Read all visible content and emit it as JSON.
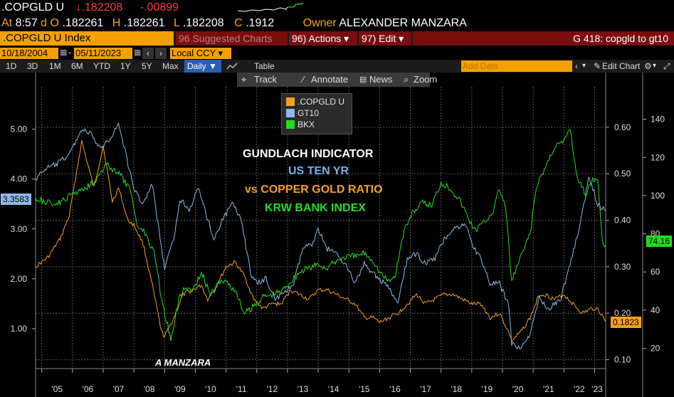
{
  "quote": {
    "ticker": ".COPGLD U",
    "last_arrow": "↓",
    "last": ".182208",
    "change": "-.00899",
    "at_label": "At",
    "time": "8:57",
    "d_label": "d",
    "o_label": "O",
    "open": ".182261",
    "h_label": "H",
    "high": ".182261",
    "l_label": "L",
    "low": ".182208",
    "c_label": "C",
    "close": ".1912",
    "owner_label": "Owner",
    "owner": "ALEXANDER MANZARA"
  },
  "cmdbar": {
    "security": ".COPGLD U Index",
    "suggested": "Suggested Charts",
    "suggested_num": "96",
    "actions": "Actions",
    "actions_num": "96)",
    "edit": "Edit",
    "edit_num": "97)",
    "function": "G 418: copgld to gt10"
  },
  "datebar": {
    "start": "10/18/2004",
    "end": "05/11/2023",
    "currency": "Local CCY"
  },
  "rangebar": {
    "ranges": [
      "1D",
      "3D",
      "1M",
      "6M",
      "YTD",
      "1Y",
      "5Y",
      "Max"
    ],
    "frequency": "Daily",
    "table": "Table",
    "add_data": "Add Data",
    "edit_chart": "Edit Chart"
  },
  "toolbar": {
    "track": "Track",
    "annotate": "Annotate",
    "news": "News",
    "zoom": "Zoom"
  },
  "annotations": {
    "title": "GUNDLACH INDICATOR",
    "line1": "US TEN YR",
    "line2": "vs COPPER GOLD RATIO",
    "line3": "KRW BANK INDEX",
    "author": "A MANZARA"
  },
  "colors": {
    "copgld": "#f5a020",
    "gt10": "#8fb8e8",
    "bkx": "#22dd22",
    "background": "#000000",
    "grid": "#5a5a5a"
  },
  "chart_data": {
    "type": "line",
    "x_ticks": [
      "'05",
      "'06",
      "'07",
      "'08",
      "'09",
      "'10",
      "'11",
      "'12",
      "'13",
      "'14",
      "'15",
      "'16",
      "'17",
      "'18",
      "'19",
      "'20",
      "'21",
      "'22",
      "'23"
    ],
    "xlim": [
      2004.8,
      2023.36
    ],
    "left_axis": {
      "ticks": [
        "1.00",
        "2.00",
        "3.00",
        "4.00",
        "5.00"
      ],
      "ylim": [
        0.2,
        5.85
      ],
      "series": "GT10",
      "last_label": "3.3583"
    },
    "right_axis_ratio": {
      "ticks": [
        "0.10",
        "0.20",
        "0.30",
        "0.40",
        "0.50",
        "0.60"
      ],
      "ylim": [
        0.081,
        0.687
      ],
      "series": ".COPGLD U",
      "last_label": "0.1823"
    },
    "right_axis_index": {
      "ticks": [
        "20",
        "40",
        "60",
        "80",
        "100",
        "120",
        "140"
      ],
      "ylim": [
        9.4,
        157
      ],
      "series": "BKX",
      "last_label": "74.16"
    },
    "series": [
      {
        "name": ".COPGLD U",
        "axis": "right_axis_ratio",
        "x": [
          2004.8,
          2005.2,
          2005.6,
          2005.9,
          2006.1,
          2006.3,
          2006.5,
          2006.7,
          2007.0,
          2007.3,
          2007.5,
          2007.8,
          2008.0,
          2008.3,
          2008.6,
          2008.9,
          2009.0,
          2009.3,
          2009.6,
          2009.9,
          2010.2,
          2010.4,
          2010.7,
          2011.0,
          2011.3,
          2011.6,
          2011.9,
          2012.2,
          2012.5,
          2012.8,
          2013.1,
          2013.4,
          2013.7,
          2014.0,
          2014.3,
          2014.6,
          2014.9,
          2015.2,
          2015.5,
          2015.8,
          2016.0,
          2016.3,
          2016.6,
          2016.9,
          2017.2,
          2017.5,
          2017.8,
          2018.1,
          2018.4,
          2018.7,
          2019.0,
          2019.3,
          2019.6,
          2019.9,
          2020.2,
          2020.3,
          2020.6,
          2020.9,
          2021.2,
          2021.4,
          2021.7,
          2022.0,
          2022.3,
          2022.6,
          2022.9,
          2023.1,
          2023.36
        ],
        "values": [
          0.3,
          0.32,
          0.36,
          0.41,
          0.49,
          0.57,
          0.52,
          0.47,
          0.56,
          0.44,
          0.47,
          0.4,
          0.39,
          0.35,
          0.26,
          0.16,
          0.15,
          0.19,
          0.24,
          0.25,
          0.26,
          0.23,
          0.26,
          0.3,
          0.31,
          0.28,
          0.23,
          0.21,
          0.22,
          0.22,
          0.25,
          0.24,
          0.23,
          0.25,
          0.25,
          0.24,
          0.23,
          0.22,
          0.19,
          0.19,
          0.18,
          0.19,
          0.2,
          0.22,
          0.24,
          0.22,
          0.23,
          0.24,
          0.24,
          0.23,
          0.22,
          0.22,
          0.19,
          0.2,
          0.16,
          0.14,
          0.16,
          0.19,
          0.24,
          0.24,
          0.23,
          0.24,
          0.22,
          0.2,
          0.21,
          0.21,
          0.1823
        ]
      },
      {
        "name": "GT10",
        "axis": "left_axis",
        "x": [
          2004.8,
          2005.1,
          2005.5,
          2005.9,
          2006.3,
          2006.6,
          2006.9,
          2007.2,
          2007.5,
          2007.7,
          2008.0,
          2008.3,
          2008.6,
          2008.9,
          2009.0,
          2009.3,
          2009.5,
          2009.8,
          2010.1,
          2010.3,
          2010.6,
          2010.9,
          2011.2,
          2011.5,
          2011.8,
          2012.0,
          2012.3,
          2012.6,
          2012.9,
          2013.2,
          2013.5,
          2013.8,
          2014.0,
          2014.3,
          2014.6,
          2014.9,
          2015.2,
          2015.5,
          2015.8,
          2016.0,
          2016.3,
          2016.6,
          2016.9,
          2017.2,
          2017.5,
          2017.8,
          2018.1,
          2018.4,
          2018.8,
          2019.0,
          2019.3,
          2019.6,
          2019.9,
          2020.2,
          2020.3,
          2020.6,
          2020.9,
          2021.2,
          2021.5,
          2021.9,
          2022.2,
          2022.5,
          2022.8,
          2022.9,
          2023.1,
          2023.36
        ],
        "values": [
          4.0,
          4.2,
          4.3,
          4.5,
          5.0,
          4.9,
          4.6,
          4.8,
          5.1,
          4.6,
          3.8,
          3.5,
          3.9,
          2.6,
          2.2,
          2.8,
          3.6,
          3.4,
          3.8,
          3.4,
          2.8,
          3.2,
          3.5,
          3.2,
          2.1,
          1.9,
          2.0,
          1.6,
          1.7,
          1.9,
          2.6,
          2.7,
          3.0,
          2.6,
          2.5,
          2.3,
          1.9,
          2.3,
          2.1,
          2.0,
          1.8,
          1.5,
          2.4,
          2.5,
          2.3,
          2.4,
          2.8,
          3.0,
          3.1,
          2.7,
          2.4,
          1.9,
          1.9,
          1.5,
          0.7,
          0.6,
          0.9,
          1.6,
          1.4,
          1.6,
          2.3,
          3.0,
          4.0,
          3.9,
          3.5,
          3.3583
        ]
      },
      {
        "name": "BKX",
        "axis": "right_axis_index",
        "x": [
          2004.8,
          2005.2,
          2005.6,
          2006.0,
          2006.4,
          2006.8,
          2007.1,
          2007.3,
          2007.6,
          2007.9,
          2008.1,
          2008.4,
          2008.7,
          2008.9,
          2009.1,
          2009.2,
          2009.5,
          2009.7,
          2009.9,
          2010.2,
          2010.5,
          2010.8,
          2011.0,
          2011.3,
          2011.6,
          2011.9,
          2012.2,
          2012.5,
          2012.8,
          2013.1,
          2013.4,
          2013.7,
          2014.0,
          2014.3,
          2014.6,
          2014.9,
          2015.2,
          2015.5,
          2015.8,
          2016.0,
          2016.3,
          2016.5,
          2016.8,
          2017.1,
          2017.4,
          2017.7,
          2018.0,
          2018.3,
          2018.6,
          2018.9,
          2019.1,
          2019.4,
          2019.7,
          2019.9,
          2020.1,
          2020.3,
          2020.6,
          2020.9,
          2021.1,
          2021.4,
          2021.7,
          2022.0,
          2022.2,
          2022.4,
          2022.7,
          2022.9,
          2023.1,
          2023.25,
          2023.36
        ],
        "values": [
          99,
          96,
          96,
          101,
          104,
          109,
          116,
          114,
          110,
          102,
          85,
          80,
          68,
          45,
          32,
          25,
          48,
          52,
          50,
          60,
          48,
          55,
          55,
          50,
          38,
          42,
          47,
          48,
          50,
          55,
          60,
          62,
          64,
          62,
          66,
          68,
          68,
          70,
          66,
          60,
          55,
          58,
          82,
          92,
          96,
          95,
          107,
          104,
          98,
          88,
          82,
          86,
          92,
          104,
          94,
          55,
          68,
          80,
          104,
          115,
          126,
          128,
          136,
          112,
          100,
          108,
          110,
          75,
          74.16
        ]
      }
    ]
  }
}
